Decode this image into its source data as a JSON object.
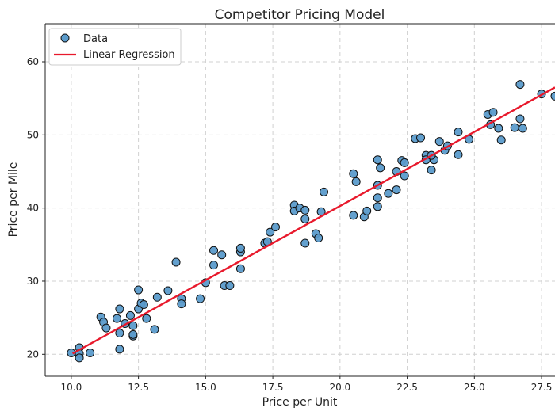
{
  "chart_data": {
    "type": "scatter",
    "title": "Competitor Pricing Model",
    "xlabel": "Price per Unit",
    "ylabel": "Price per Mile",
    "xlim": [
      9.03,
      28.0
    ],
    "ylim": [
      17.0,
      65.2
    ],
    "xticks": [
      10.0,
      12.5,
      15.0,
      17.5,
      20.0,
      22.5,
      25.0,
      27.5
    ],
    "xtick_labels": [
      "10.0",
      "12.5",
      "15.0",
      "17.5",
      "20.0",
      "22.5",
      "25.0",
      "27.5"
    ],
    "yticks": [
      20,
      30,
      40,
      50,
      60
    ],
    "ytick_labels": [
      "20",
      "30",
      "40",
      "50",
      "60"
    ],
    "grid": true,
    "legend_placement": "top-left",
    "colors": {
      "points": "#5b9bcb",
      "point_edge": "#111111",
      "line": "#e8192c"
    },
    "series": [
      {
        "name": "Data",
        "kind": "scatter",
        "points": [
          [
            10.0,
            20.2
          ],
          [
            10.3,
            20.9
          ],
          [
            10.3,
            20.1
          ],
          [
            10.3,
            19.5
          ],
          [
            10.7,
            20.2
          ],
          [
            11.8,
            20.7
          ],
          [
            11.8,
            22.9
          ],
          [
            12.3,
            22.5
          ],
          [
            12.3,
            22.7
          ],
          [
            11.7,
            24.9
          ],
          [
            11.1,
            25.1
          ],
          [
            11.2,
            24.4
          ],
          [
            11.3,
            23.6
          ],
          [
            12.0,
            24.2
          ],
          [
            12.2,
            25.3
          ],
          [
            12.3,
            23.9
          ],
          [
            11.8,
            26.2
          ],
          [
            12.5,
            26.2
          ],
          [
            12.6,
            27.0
          ],
          [
            12.7,
            26.8
          ],
          [
            12.8,
            24.9
          ],
          [
            13.1,
            23.4
          ],
          [
            13.2,
            27.8
          ],
          [
            12.5,
            28.8
          ],
          [
            13.6,
            28.7
          ],
          [
            13.9,
            32.6
          ],
          [
            14.1,
            27.6
          ],
          [
            14.1,
            26.9
          ],
          [
            14.8,
            27.6
          ],
          [
            15.0,
            29.8
          ],
          [
            15.3,
            34.2
          ],
          [
            15.3,
            32.2
          ],
          [
            15.6,
            33.6
          ],
          [
            15.7,
            29.4
          ],
          [
            15.9,
            29.4
          ],
          [
            16.3,
            34.0
          ],
          [
            16.3,
            34.5
          ],
          [
            16.3,
            31.7
          ],
          [
            17.2,
            35.2
          ],
          [
            17.3,
            35.4
          ],
          [
            17.4,
            36.7
          ],
          [
            17.6,
            37.4
          ],
          [
            18.3,
            40.4
          ],
          [
            18.3,
            39.6
          ],
          [
            18.5,
            40.0
          ],
          [
            18.7,
            39.7
          ],
          [
            18.7,
            38.5
          ],
          [
            18.7,
            35.2
          ],
          [
            19.1,
            36.5
          ],
          [
            19.2,
            35.9
          ],
          [
            19.3,
            39.5
          ],
          [
            19.4,
            42.2
          ],
          [
            20.5,
            44.7
          ],
          [
            20.6,
            43.6
          ],
          [
            20.5,
            39.0
          ],
          [
            20.9,
            38.8
          ],
          [
            21.0,
            39.6
          ],
          [
            21.4,
            40.2
          ],
          [
            21.4,
            43.1
          ],
          [
            21.4,
            41.4
          ],
          [
            21.4,
            46.6
          ],
          [
            21.5,
            45.5
          ],
          [
            21.8,
            42.0
          ],
          [
            22.1,
            45.0
          ],
          [
            22.1,
            42.5
          ],
          [
            22.3,
            46.5
          ],
          [
            22.4,
            46.2
          ],
          [
            22.4,
            44.4
          ],
          [
            22.8,
            49.5
          ],
          [
            23.0,
            49.6
          ],
          [
            23.2,
            47.2
          ],
          [
            23.2,
            46.6
          ],
          [
            23.4,
            45.2
          ],
          [
            23.5,
            46.6
          ],
          [
            23.4,
            47.2
          ],
          [
            23.7,
            49.1
          ],
          [
            23.9,
            47.9
          ],
          [
            24.0,
            48.5
          ],
          [
            24.4,
            50.4
          ],
          [
            24.4,
            47.3
          ],
          [
            24.8,
            49.4
          ],
          [
            25.5,
            52.8
          ],
          [
            25.7,
            53.1
          ],
          [
            25.6,
            51.4
          ],
          [
            25.9,
            50.9
          ],
          [
            26.0,
            49.3
          ],
          [
            26.5,
            51.0
          ],
          [
            26.7,
            52.2
          ],
          [
            26.7,
            56.9
          ],
          [
            26.8,
            50.9
          ],
          [
            27.5,
            55.6
          ],
          [
            28.0,
            55.3
          ]
        ]
      },
      {
        "name": "Linear Regression",
        "kind": "line",
        "points": [
          [
            10.05,
            20.1
          ],
          [
            28.0,
            56.5
          ]
        ]
      }
    ]
  }
}
